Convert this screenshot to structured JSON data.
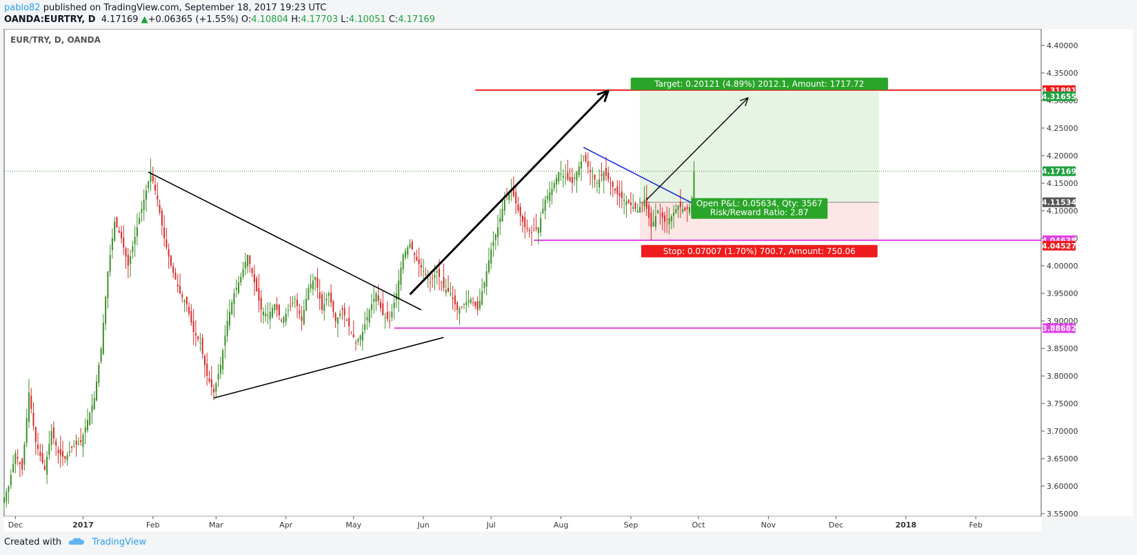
{
  "header": {
    "user": "pablo82",
    "published": "published on TradingView.com, September 18, 2017 19:23 UTC",
    "symbol": "OANDA:EURTRY, D",
    "last": "4.17169",
    "change": "+0.06365 (+1.55%)",
    "open_label": "O:",
    "open": "4.10804",
    "high_label": "H:",
    "high": "4.17703",
    "low_label": "L:",
    "low": "4.10051",
    "close_label": "C:",
    "close": "4.17169"
  },
  "footer": {
    "created_with": "Created with",
    "brand": "TradingView"
  },
  "colors": {
    "up": "#3d8f2a",
    "down": "#d62a2a",
    "magenta": "#e040e8",
    "red_line": "#ee1c1c",
    "blue_line": "#1b2fd8",
    "green_zone": "#e6f4e3",
    "red_zone": "#fde6e6"
  },
  "chart_data": {
    "type": "candlestick",
    "title": "EUR/TRY, D, OANDA",
    "x_tick_labels": [
      "Dec",
      "2017",
      "Feb",
      "Mar",
      "Apr",
      "May",
      "Jun",
      "Jul",
      "Aug",
      "Sep",
      "Oct",
      "Nov",
      "Dec",
      "2018",
      "Feb"
    ],
    "y_tick_labels": [
      "4.40000",
      "4.35000",
      "4.30000",
      "4.25000",
      "4.20000",
      "4.15000",
      "4.10000",
      "4.05000",
      "4.00000",
      "3.95000",
      "3.90000",
      "3.85000",
      "3.80000",
      "3.75000",
      "3.70000",
      "3.65000",
      "3.60000",
      "3.55000"
    ],
    "ylim": [
      3.545,
      4.43
    ],
    "xlim_days": [
      0,
      460
    ],
    "price_tags": [
      {
        "label": "4.31891",
        "value": 4.31891,
        "color": "#ee1c1c"
      },
      {
        "label": "4.31655",
        "value": 4.31655,
        "color": "#1f9f3f"
      },
      {
        "label": "4.17169",
        "value": 4.17169,
        "color": "#1f9f3f"
      },
      {
        "label": "4.11534",
        "value": 4.11534,
        "color": "#555555"
      },
      {
        "label": "4.04638",
        "value": 4.04638,
        "color": "#e040e8"
      },
      {
        "label": "4.04527",
        "value": 4.04527,
        "color": "#ee1c1c"
      },
      {
        "label": "3.88682",
        "value": 3.88682,
        "color": "#e040e8"
      }
    ],
    "horizontal_levels": [
      {
        "value": 4.31891,
        "from_day": 209,
        "color": "#ee1c1c"
      },
      {
        "value": 4.04638,
        "from_day": 235,
        "color": "#e040e8"
      },
      {
        "value": 3.88682,
        "from_day": 173,
        "color": "#e040e8"
      }
    ],
    "trend_lines": [
      {
        "from": [
          64,
          4.17
        ],
        "to": [
          185,
          3.92
        ],
        "color": "#000000"
      },
      {
        "from": [
          93,
          3.76
        ],
        "to": [
          195,
          3.87
        ],
        "color": "#000000"
      },
      {
        "from": [
          257,
          4.215
        ],
        "to": [
          307,
          4.11
        ],
        "color": "#1b2fd8"
      }
    ],
    "arrows": [
      {
        "from": [
          180,
          3.948
        ],
        "to": [
          268,
          4.318
        ],
        "color": "#000000",
        "bold": true
      },
      {
        "from": [
          285,
          4.12
        ],
        "to": [
          330,
          4.305
        ],
        "color": "#000000",
        "bold": false
      }
    ],
    "position": {
      "start_day": 282,
      "end_day": 388,
      "entry": 4.11534,
      "target": 4.31655,
      "stop": 4.04527,
      "target_label": "Target: 0.20121 (4.89%) 2012.1, Amount: 1717.72",
      "stop_label": "Stop: 0.07007 (1.70%) 700.7, Amount: 750.06",
      "pnl_label": "Open P&L: 0.05634, Qty: 3567",
      "rr_label": "Risk/Reward Ratio: 2.87"
    },
    "current_price": 4.17169,
    "series_anchors": [
      [
        0,
        3.58
      ],
      [
        2,
        3.6
      ],
      [
        5,
        3.66
      ],
      [
        8,
        3.63
      ],
      [
        11,
        3.77
      ],
      [
        14,
        3.68
      ],
      [
        18,
        3.63
      ],
      [
        21,
        3.7
      ],
      [
        24,
        3.66
      ],
      [
        27,
        3.65
      ],
      [
        30,
        3.67
      ],
      [
        34,
        3.68
      ],
      [
        37,
        3.72
      ],
      [
        40,
        3.76
      ],
      [
        43,
        3.85
      ],
      [
        46,
        3.99
      ],
      [
        49,
        4.08
      ],
      [
        52,
        4.05
      ],
      [
        55,
        4.0
      ],
      [
        59,
        4.07
      ],
      [
        62,
        4.12
      ],
      [
        65,
        4.17
      ],
      [
        68,
        4.12
      ],
      [
        71,
        4.05
      ],
      [
        74,
        4.0
      ],
      [
        78,
        3.95
      ],
      [
        81,
        3.93
      ],
      [
        84,
        3.88
      ],
      [
        87,
        3.86
      ],
      [
        90,
        3.8
      ],
      [
        93,
        3.77
      ],
      [
        96,
        3.82
      ],
      [
        99,
        3.9
      ],
      [
        102,
        3.95
      ],
      [
        105,
        3.98
      ],
      [
        108,
        4.02
      ],
      [
        111,
        3.97
      ],
      [
        114,
        3.92
      ],
      [
        117,
        3.91
      ],
      [
        120,
        3.93
      ],
      [
        123,
        3.9
      ],
      [
        126,
        3.92
      ],
      [
        129,
        3.94
      ],
      [
        132,
        3.9
      ],
      [
        135,
        3.96
      ],
      [
        138,
        3.98
      ],
      [
        141,
        3.92
      ],
      [
        144,
        3.95
      ],
      [
        147,
        3.9
      ],
      [
        150,
        3.92
      ],
      [
        153,
        3.89
      ],
      [
        156,
        3.86
      ],
      [
        159,
        3.88
      ],
      [
        162,
        3.92
      ],
      [
        165,
        3.95
      ],
      [
        168,
        3.91
      ],
      [
        171,
        3.9
      ],
      [
        174,
        3.95
      ],
      [
        177,
        4.02
      ],
      [
        180,
        4.04
      ],
      [
        183,
        4.01
      ],
      [
        186,
        3.99
      ],
      [
        189,
        3.97
      ],
      [
        192,
        3.99
      ],
      [
        195,
        3.96
      ],
      [
        198,
        3.95
      ],
      [
        201,
        3.92
      ],
      [
        204,
        3.93
      ],
      [
        207,
        3.94
      ],
      [
        210,
        3.92
      ],
      [
        213,
        3.97
      ],
      [
        216,
        4.03
      ],
      [
        219,
        4.07
      ],
      [
        222,
        4.12
      ],
      [
        225,
        4.14
      ],
      [
        228,
        4.1
      ],
      [
        231,
        4.07
      ],
      [
        234,
        4.06
      ],
      [
        237,
        4.07
      ],
      [
        240,
        4.12
      ],
      [
        243,
        4.14
      ],
      [
        246,
        4.17
      ],
      [
        249,
        4.16
      ],
      [
        252,
        4.15
      ],
      [
        255,
        4.18
      ],
      [
        257,
        4.2
      ],
      [
        260,
        4.17
      ],
      [
        263,
        4.15
      ],
      [
        266,
        4.17
      ],
      [
        269,
        4.15
      ],
      [
        272,
        4.13
      ],
      [
        275,
        4.12
      ],
      [
        278,
        4.11
      ],
      [
        281,
        4.1
      ],
      [
        284,
        4.12
      ],
      [
        287,
        4.07
      ],
      [
        290,
        4.1
      ],
      [
        293,
        4.08
      ],
      [
        296,
        4.09
      ],
      [
        299,
        4.11
      ],
      [
        302,
        4.1
      ],
      [
        305,
        4.11
      ],
      [
        306,
        4.17
      ]
    ]
  }
}
